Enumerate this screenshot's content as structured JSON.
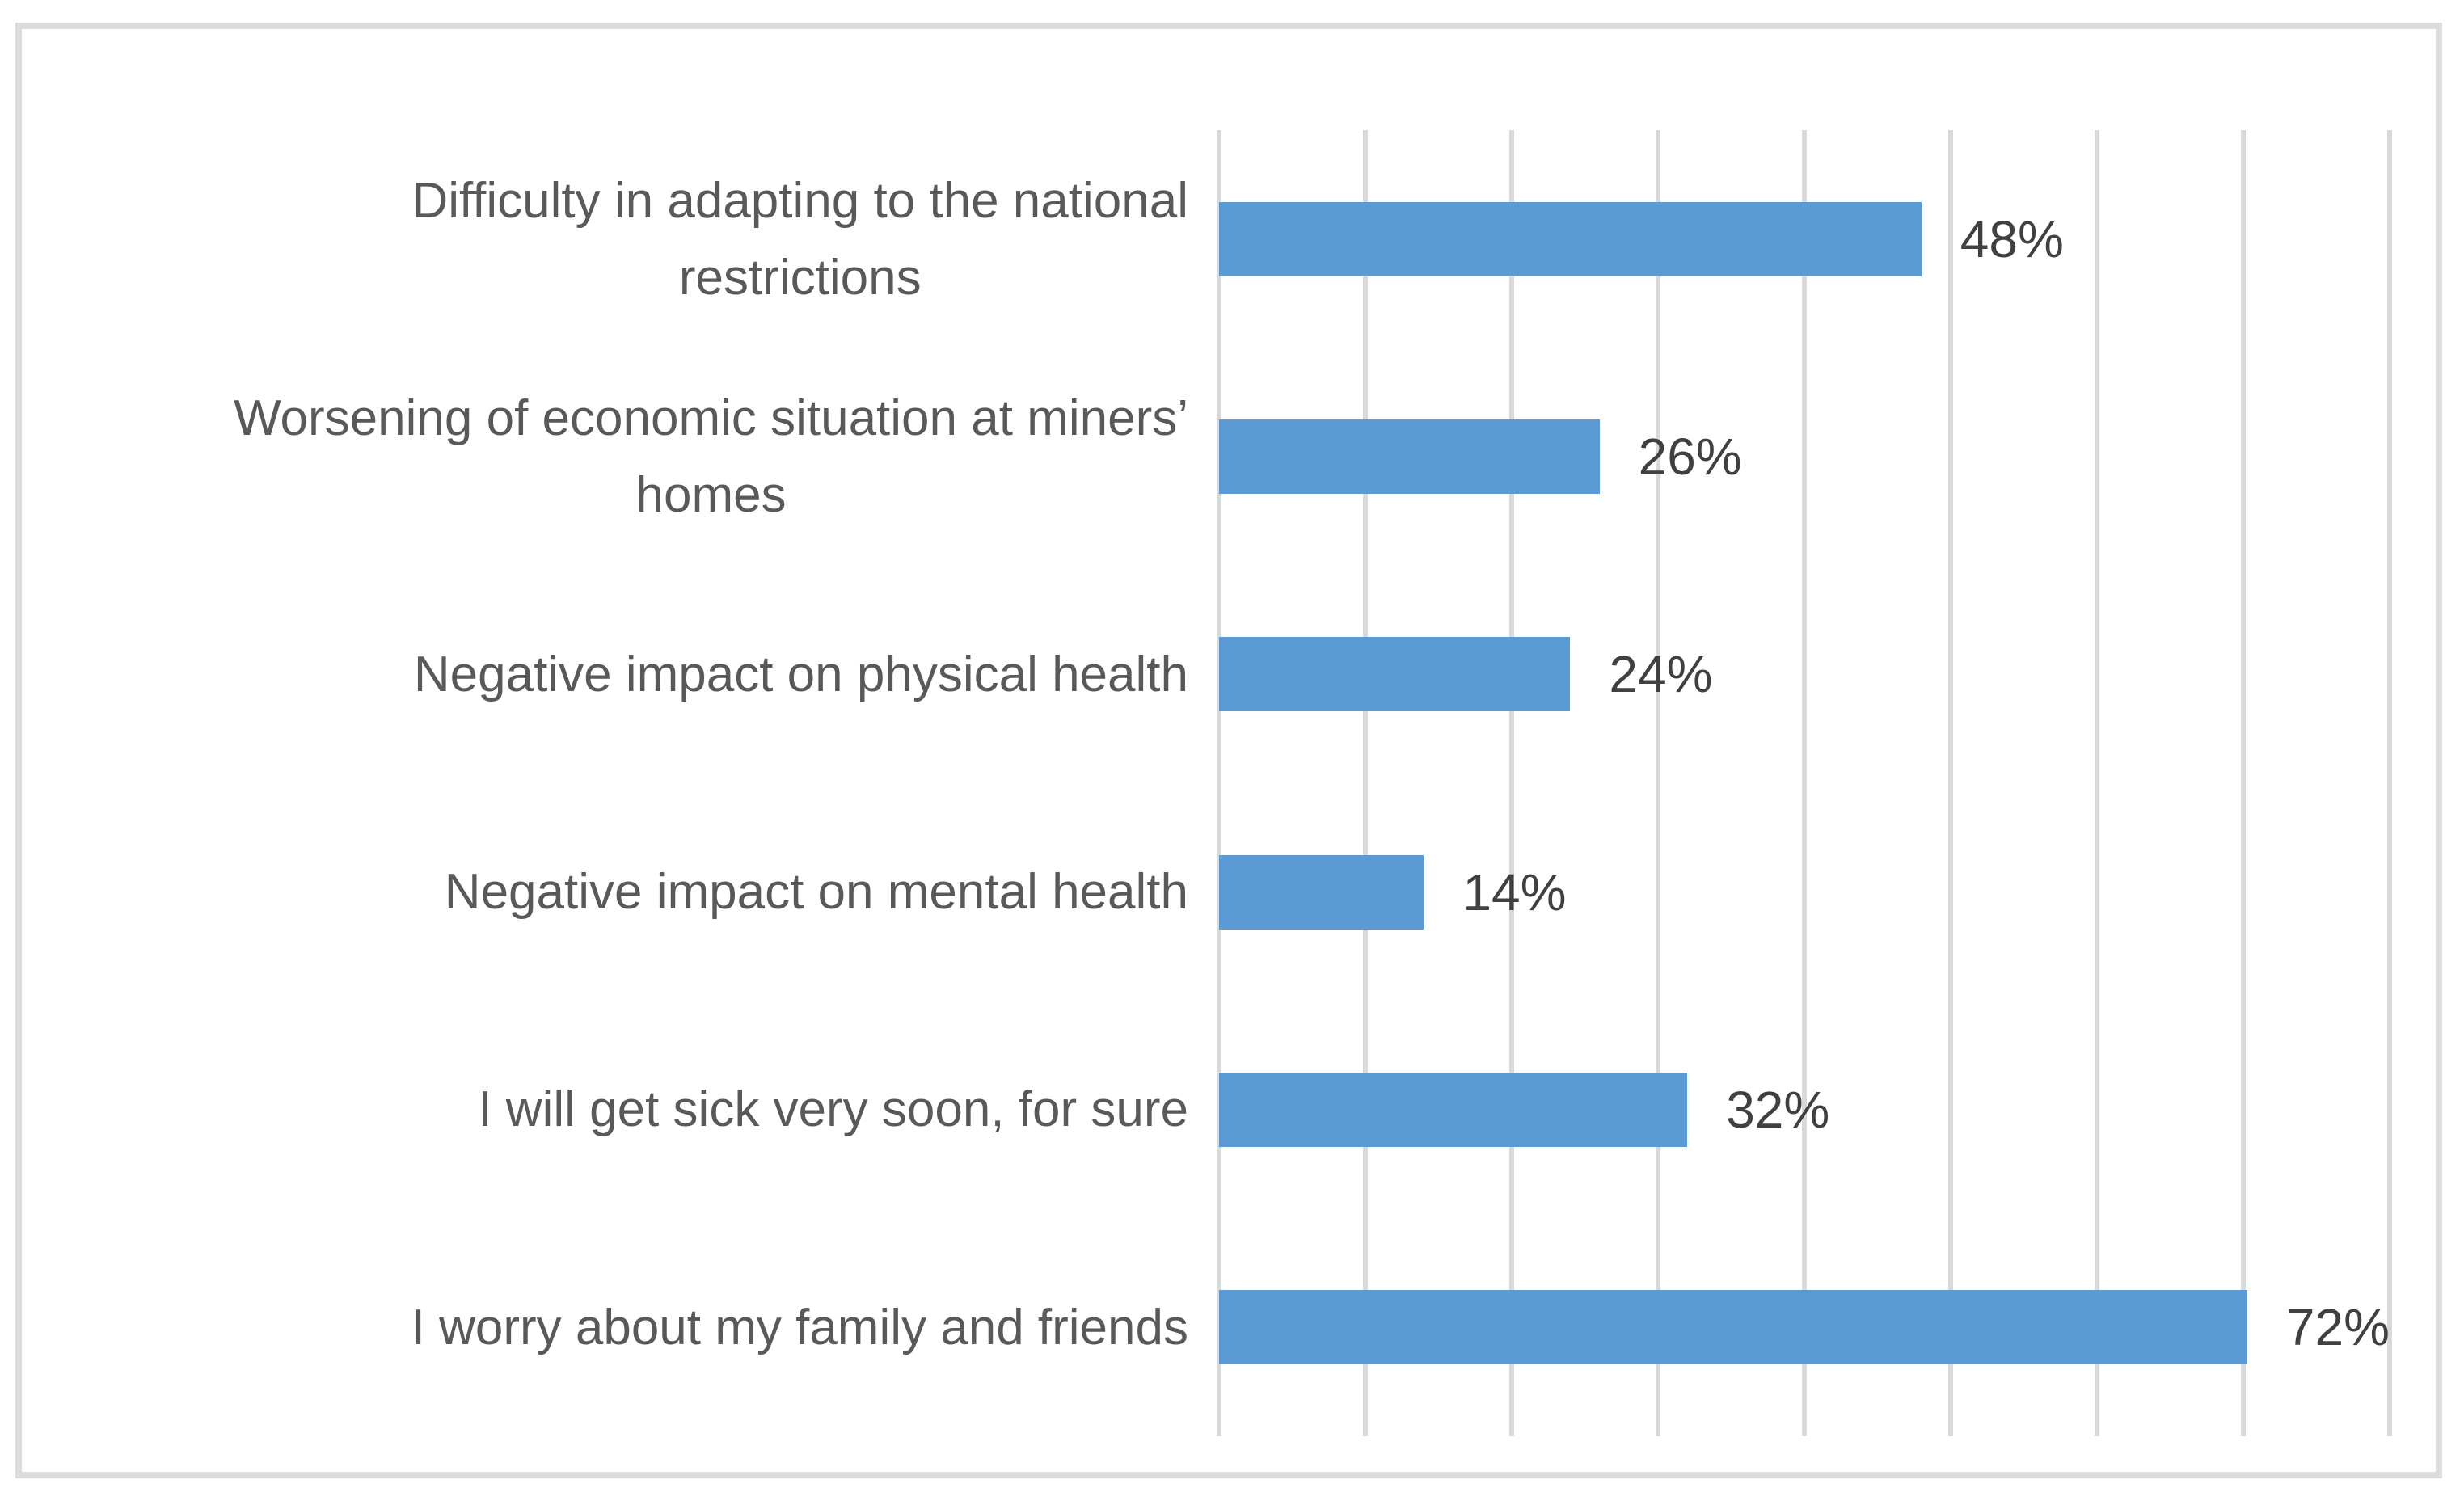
{
  "chart_data": {
    "type": "bar",
    "orientation": "horizontal",
    "title": "",
    "xlabel": "",
    "ylabel": "",
    "categories": [
      "Difficulty in adapting to the national\nrestrictions",
      "Worsening of economic situation at miners’\nhomes",
      "Negative impact on physical health",
      "Negative impact on mental health",
      "I will get sick very soon, for sure",
      "I worry about my family and friends"
    ],
    "values": [
      48,
      26,
      24,
      14,
      32,
      72
    ],
    "value_labels": [
      "48%",
      "26%",
      "24%",
      "14%",
      "32%",
      "72%"
    ],
    "xlim": [
      0,
      80
    ],
    "gridline_interval": 10,
    "grid": true,
    "legend": "none",
    "axis_tick_labels_visible": false,
    "colors": {
      "bar": "#5B9BD5",
      "gridline": "#D9D9D9",
      "category_label": "#595959",
      "value_label": "#404040",
      "frame_border": "#DCDCDC",
      "background": "#FFFFFF"
    }
  }
}
